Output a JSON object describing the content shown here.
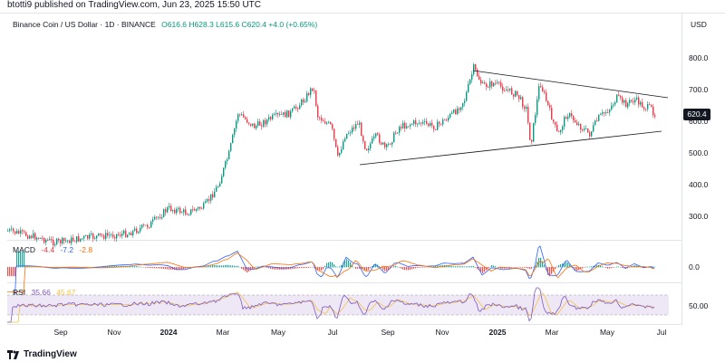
{
  "header": {
    "published": "btotti9 published on TradingView.com, Jun 23, 2025 15:50 UTC"
  },
  "legend": {
    "symbol": "Binance Coin / US Dollar · 1D · BINANCE",
    "ohlc": "O616.6  H628.3  L615.6  C620.4  +4.0 (+0.65%)"
  },
  "price_axis": {
    "currency": "USD",
    "ticks": [
      "800.0",
      "700.0",
      "600.0",
      "500.0",
      "400.0",
      "300.0"
    ],
    "last_price": "620.4"
  },
  "macd": {
    "label": "MACD",
    "v1": "-4.4",
    "v2": "-7.2",
    "v3": "-2.8",
    "axis_tick": "0.0",
    "colors": {
      "macd": "#2962ff",
      "signal": "#ff6d00",
      "hist_pos": "#26a69a",
      "hist_neg": "#ef5350"
    }
  },
  "rsi": {
    "label": "RSI",
    "v1": "35.66",
    "v2": "45.67",
    "axis_tick": "50.00",
    "colors": {
      "rsi": "#7e57c2",
      "ma": "#f5c242",
      "band": "#ede7f6"
    }
  },
  "time_axis": {
    "labels": [
      "Sep",
      "Nov",
      "2024",
      "Mar",
      "May",
      "Jul",
      "Sep",
      "Nov",
      "2025",
      "Mar",
      "May",
      "Jul"
    ]
  },
  "footer": {
    "brand": "TradingView"
  },
  "colors": {
    "up": "#089981",
    "down": "#f23645",
    "trendline": "#131722"
  }
}
